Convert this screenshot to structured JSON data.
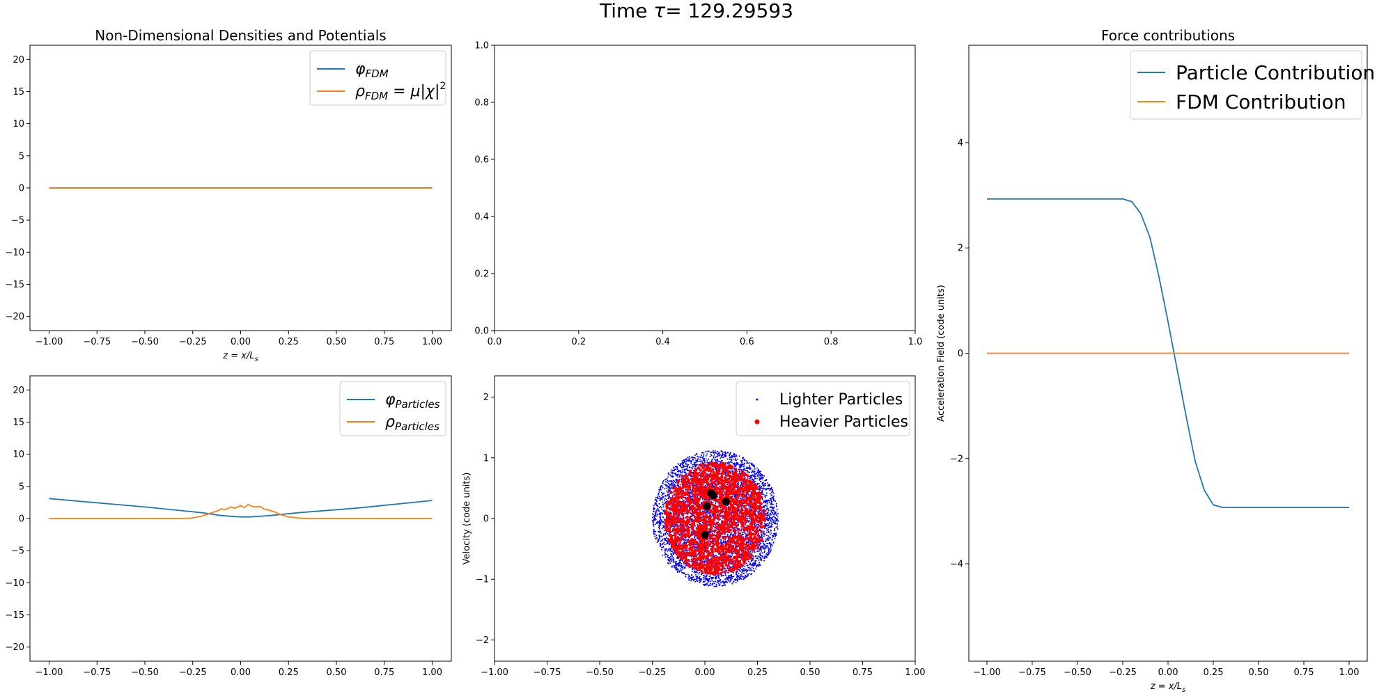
{
  "figure": {
    "suptitle_prefix": "Time",
    "tau": "τ",
    "suptitle_eq": "= 129.29593"
  },
  "colors": {
    "blue": "#1f77b4",
    "orange": "#ff7f0e",
    "scatter_light": "#0000ff",
    "scatter_heavy": "#ff0000",
    "scatter_heaviest": "#000000"
  },
  "chart_data": [
    {
      "id": "fdm",
      "type": "line",
      "title": "Non-Dimensional Densities and Potentials",
      "xlabel": "z = x/L",
      "xlabel_sub": "s",
      "ylabel": "",
      "xlim": [
        -1.1,
        1.1
      ],
      "ylim": [
        -22.2,
        22.2
      ],
      "xticks": [
        -1.0,
        -0.75,
        -0.5,
        -0.25,
        0.0,
        0.25,
        0.5,
        0.75,
        1.0
      ],
      "xtick_labels": [
        "−1.00",
        "−0.75",
        "−0.50",
        "−0.25",
        "0.00",
        "0.25",
        "0.50",
        "0.75",
        "1.00"
      ],
      "yticks": [
        -20,
        -15,
        -10,
        -5,
        0,
        5,
        10,
        15,
        20
      ],
      "ytick_labels": [
        "−20",
        "−15",
        "−10",
        "−5",
        "0",
        "5",
        "10",
        "15",
        "20"
      ],
      "legend": "top-right",
      "series": [
        {
          "name": "φFDM",
          "label_main": "φ",
          "label_sub": "FDM",
          "color": "#1f77b4",
          "x": [
            -1.0,
            1.0
          ],
          "y": [
            0,
            0
          ]
        },
        {
          "name": "ρFDM = μ|χ|2",
          "label_main": "ρ",
          "label_sub": "FDM",
          "label_tail": " = μ|χ|",
          "label_sup": "2",
          "color": "#ff7f0e",
          "x": [
            -1.0,
            1.0
          ],
          "y": [
            0,
            0
          ]
        }
      ]
    },
    {
      "id": "empty",
      "type": "line",
      "title": "",
      "xlabel": "",
      "ylabel": "",
      "xlim": [
        0,
        1
      ],
      "ylim": [
        0,
        1
      ],
      "xticks": [
        0.0,
        0.2,
        0.4,
        0.6,
        0.8,
        1.0
      ],
      "xtick_labels": [
        "0.0",
        "0.2",
        "0.4",
        "0.6",
        "0.8",
        "1.0"
      ],
      "yticks": [
        0.0,
        0.2,
        0.4,
        0.6,
        0.8,
        1.0
      ],
      "ytick_labels": [
        "0.0",
        "0.2",
        "0.4",
        "0.6",
        "0.8",
        "1.0"
      ],
      "series": []
    },
    {
      "id": "force",
      "type": "line",
      "title": "Force contributions",
      "xlabel": "z = x/L",
      "xlabel_sub": "s",
      "ylabel": "Acceleration Field (code units)",
      "xlim": [
        -1.1,
        1.1
      ],
      "ylim": [
        -5.85,
        5.85
      ],
      "xticks": [
        -1.0,
        -0.75,
        -0.5,
        -0.25,
        0.0,
        0.25,
        0.5,
        0.75,
        1.0
      ],
      "xtick_labels": [
        "−1.00",
        "−0.75",
        "−0.50",
        "−0.25",
        "0.00",
        "0.25",
        "0.50",
        "0.75",
        "1.00"
      ],
      "yticks": [
        -4,
        -2,
        0,
        2,
        4
      ],
      "ytick_labels": [
        "−4",
        "−2",
        "0",
        "2",
        "4"
      ],
      "legend": "top-right",
      "series": [
        {
          "name": "Particle Contribution",
          "color": "#1f77b4",
          "x": [
            -1.0,
            -0.3,
            -0.25,
            -0.2,
            -0.15,
            -0.1,
            -0.05,
            0.0,
            0.05,
            0.1,
            0.15,
            0.2,
            0.25,
            0.3,
            0.35,
            1.0
          ],
          "y": [
            2.93,
            2.93,
            2.93,
            2.88,
            2.65,
            2.2,
            1.45,
            0.6,
            -0.3,
            -1.2,
            -2.05,
            -2.6,
            -2.88,
            -2.93,
            -2.93,
            -2.93
          ]
        },
        {
          "name": "FDM Contribution",
          "color": "#ff7f0e",
          "x": [
            -1.0,
            1.0
          ],
          "y": [
            0,
            0
          ]
        }
      ]
    },
    {
      "id": "particles",
      "type": "line",
      "title": "",
      "xlabel": "",
      "ylabel": "",
      "xlim": [
        -1.1,
        1.1
      ],
      "ylim": [
        -22.2,
        22.2
      ],
      "xticks": [
        -1.0,
        -0.75,
        -0.5,
        -0.25,
        0.0,
        0.25,
        0.5,
        0.75,
        1.0
      ],
      "xtick_labels": [
        "−1.00",
        "−0.75",
        "−0.50",
        "−0.25",
        "0.00",
        "0.25",
        "0.50",
        "0.75",
        "1.00"
      ],
      "yticks": [
        -20,
        -15,
        -10,
        -5,
        0,
        5,
        10,
        15,
        20
      ],
      "ytick_labels": [
        "−20",
        "−15",
        "−10",
        "−5",
        "0",
        "5",
        "10",
        "15",
        "20"
      ],
      "legend": "top-right",
      "series": [
        {
          "name": "φParticles",
          "label_main": "φ",
          "label_sub": "Particles",
          "color": "#1f77b4",
          "x": [
            -1.0,
            -0.5,
            -0.2,
            -0.1,
            0.0,
            0.05,
            0.15,
            0.3,
            0.6,
            1.0
          ],
          "y": [
            3.1,
            1.8,
            0.9,
            0.45,
            0.25,
            0.25,
            0.45,
            0.9,
            1.6,
            2.8
          ]
        },
        {
          "name": "ρParticles",
          "label_main": "ρ",
          "label_sub": "Particles",
          "color": "#ff7f0e",
          "x": [
            -1.0,
            -0.3,
            -0.25,
            -0.2,
            -0.17,
            -0.15,
            -0.12,
            -0.1,
            -0.08,
            -0.05,
            -0.03,
            0.0,
            0.02,
            0.04,
            0.06,
            0.08,
            0.1,
            0.12,
            0.15,
            0.18,
            0.2,
            0.22,
            0.25,
            0.3,
            0.35,
            1.0
          ],
          "y": [
            0,
            0,
            0.1,
            0.4,
            0.7,
            0.9,
            1.2,
            1.5,
            1.4,
            1.8,
            1.6,
            2.0,
            1.7,
            2.2,
            1.9,
            1.8,
            1.9,
            1.5,
            1.3,
            1.0,
            0.7,
            0.5,
            0.25,
            0.1,
            0,
            0
          ]
        }
      ]
    },
    {
      "id": "phase",
      "type": "scatter",
      "title": "",
      "xlabel": "",
      "ylabel": "Velocity (code units)",
      "xlim": [
        -1.0,
        1.0
      ],
      "ylim": [
        -2.35,
        2.35
      ],
      "xticks": [
        -1.0,
        -0.75,
        -0.5,
        -0.25,
        0.0,
        0.25,
        0.5,
        0.75,
        1.0
      ],
      "xtick_labels": [
        "−1.00",
        "−0.75",
        "−0.50",
        "−0.25",
        "0.00",
        "0.25",
        "0.50",
        "0.75",
        "1.00"
      ],
      "yticks": [
        -2,
        -1,
        0,
        1,
        2
      ],
      "ytick_labels": [
        "−2",
        "−1",
        "0",
        "1",
        "2"
      ],
      "legend": "top-right",
      "series": [
        {
          "name": "Lighter Particles",
          "color": "#0000ff",
          "center": [
            0.05,
            0.0
          ],
          "radius": [
            0.3,
            1.12
          ]
        },
        {
          "name": "Heavier Particles",
          "color": "#ff0000",
          "center": [
            0.05,
            0.0
          ],
          "radius": [
            0.24,
            0.92
          ]
        },
        {
          "name": "",
          "color": "#000000",
          "points": [
            [
              0.03,
              0.42
            ],
            [
              0.04,
              0.38
            ],
            [
              0.01,
              0.2
            ],
            [
              0.1,
              0.28
            ],
            [
              0.0,
              -0.27
            ]
          ]
        }
      ]
    }
  ]
}
